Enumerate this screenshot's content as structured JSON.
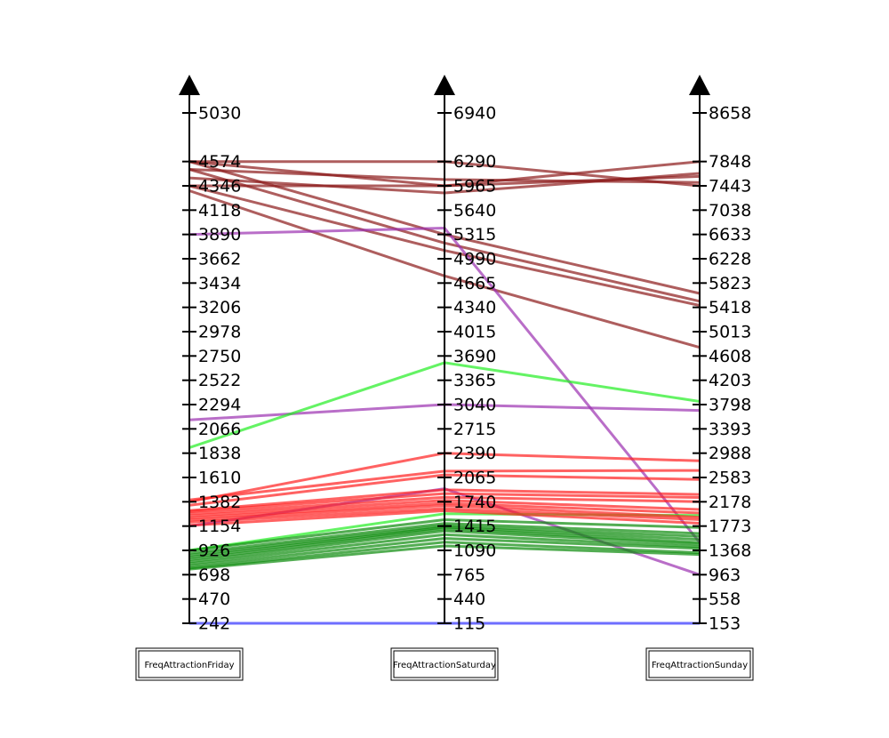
{
  "chart_data": {
    "type": "parallel-coordinates",
    "axes": [
      {
        "name": "FreqAttractionFriday",
        "ticks": [
          242,
          470,
          698,
          926,
          1154,
          1382,
          1610,
          1838,
          2066,
          2294,
          2522,
          2750,
          2978,
          3206,
          3434,
          3662,
          3890,
          4118,
          4346,
          4574,
          5030
        ],
        "range": [
          242,
          5030
        ]
      },
      {
        "name": "FreqAttractionSaturday",
        "ticks": [
          115,
          440,
          765,
          1090,
          1415,
          1740,
          2065,
          2390,
          2715,
          3040,
          3365,
          3690,
          4015,
          4340,
          4665,
          4990,
          5315,
          5640,
          5965,
          6290,
          6940
        ],
        "range": [
          115,
          6940
        ]
      },
      {
        "name": "FreqAttractionSunday",
        "ticks": [
          153,
          558,
          963,
          1368,
          1773,
          2178,
          2583,
          2988,
          3393,
          3798,
          4203,
          4608,
          5013,
          5418,
          5823,
          6228,
          6633,
          7038,
          7443,
          7848,
          8658
        ],
        "range": [
          153,
          8658
        ]
      }
    ],
    "colors": {
      "darkred": "#8b1a1a",
      "purple": "#9b30b0",
      "green": "#22ee22",
      "red": "#ff2020",
      "darkgreen": "#0a8a0a",
      "blue": "#3030ff"
    },
    "lines": [
      {
        "color": "darkred",
        "values": [
          4574,
          6290,
          7443
        ]
      },
      {
        "color": "darkred",
        "values": [
          4574,
          5965,
          7848
        ]
      },
      {
        "color": "darkred",
        "values": [
          4346,
          5965,
          7600
        ]
      },
      {
        "color": "darkred",
        "values": [
          4500,
          6050,
          7500
        ]
      },
      {
        "color": "darkred",
        "values": [
          4420,
          5870,
          7650
        ]
      },
      {
        "color": "darkred",
        "values": [
          4574,
          5315,
          5650
        ]
      },
      {
        "color": "darkred",
        "values": [
          4500,
          5200,
          5520
        ]
      },
      {
        "color": "darkred",
        "values": [
          4346,
          5100,
          5450
        ]
      },
      {
        "color": "darkred",
        "values": [
          4300,
          4760,
          4750
        ]
      },
      {
        "color": "purple",
        "values": [
          3890,
          5400,
          1500
        ]
      },
      {
        "color": "purple",
        "values": [
          2150,
          3040,
          3700
        ]
      },
      {
        "color": "purple",
        "values": [
          1154,
          1915,
          963
        ]
      },
      {
        "color": "green",
        "values": [
          1890,
          3600,
          3850
        ]
      },
      {
        "color": "green",
        "values": [
          926,
          1580,
          1950
        ]
      },
      {
        "color": "red",
        "values": [
          1382,
          2390,
          2860
        ]
      },
      {
        "color": "red",
        "values": [
          1400,
          2150,
          2700
        ]
      },
      {
        "color": "red",
        "values": [
          1350,
          2100,
          2550
        ]
      },
      {
        "color": "red",
        "values": [
          1300,
          1900,
          2300
        ]
      },
      {
        "color": "red",
        "values": [
          1290,
          1850,
          2250
        ]
      },
      {
        "color": "red",
        "values": [
          1270,
          1800,
          2180
        ]
      },
      {
        "color": "red",
        "values": [
          1250,
          1760,
          2050
        ]
      },
      {
        "color": "red",
        "values": [
          1230,
          1720,
          1990
        ]
      },
      {
        "color": "red",
        "values": [
          1210,
          1690,
          1920
        ]
      },
      {
        "color": "red",
        "values": [
          1190,
          1650,
          1880
        ]
      },
      {
        "color": "red",
        "values": [
          1160,
          1620,
          1820
        ]
      },
      {
        "color": "darkgreen",
        "values": [
          926,
          1500,
          1750
        ]
      },
      {
        "color": "darkgreen",
        "values": [
          900,
          1450,
          1650
        ]
      },
      {
        "color": "darkgreen",
        "values": [
          880,
          1420,
          1600
        ]
      },
      {
        "color": "darkgreen",
        "values": [
          860,
          1400,
          1550
        ]
      },
      {
        "color": "darkgreen",
        "values": [
          840,
          1380,
          1500
        ]
      },
      {
        "color": "darkgreen",
        "values": [
          820,
          1350,
          1470
        ]
      },
      {
        "color": "darkgreen",
        "values": [
          800,
          1300,
          1430
        ]
      },
      {
        "color": "darkgreen",
        "values": [
          780,
          1250,
          1400
        ]
      },
      {
        "color": "darkgreen",
        "values": [
          760,
          1200,
          1330
        ]
      },
      {
        "color": "darkgreen",
        "values": [
          750,
          1150,
          1300
        ]
      },
      {
        "color": "blue",
        "values": [
          242,
          115,
          153
        ]
      }
    ]
  }
}
